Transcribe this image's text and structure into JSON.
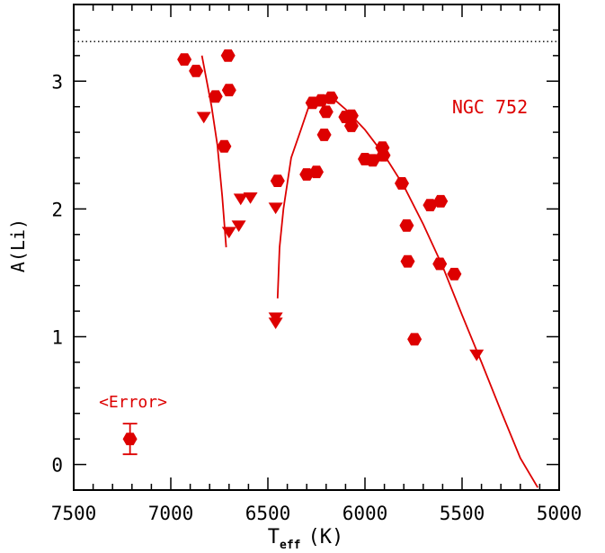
{
  "chart_data": {
    "type": "scatter",
    "title": "",
    "annotation": "NGC 752",
    "error_label": "<Error>",
    "xlabel": "T",
    "xlabel_sub": "eff",
    "xlabel_unit": "(K)",
    "ylabel": "A(Li)",
    "xlim": [
      7500,
      5000
    ],
    "ylim": [
      -0.2,
      3.6
    ],
    "xticks": [
      7500,
      7000,
      6500,
      6000,
      5500,
      5000
    ],
    "yticks": [
      0,
      1,
      2,
      3
    ],
    "reference_line": 3.31,
    "colors": {
      "data": "#dd0000",
      "axis": "#000000"
    },
    "detections": [
      [
        6930,
        3.17
      ],
      [
        6870,
        3.08
      ],
      [
        6705,
        3.2
      ],
      [
        6700,
        2.93
      ],
      [
        6770,
        2.88
      ],
      [
        6725,
        2.49
      ],
      [
        6450,
        2.22
      ],
      [
        6300,
        2.27
      ],
      [
        6250,
        2.29
      ],
      [
        6270,
        2.83
      ],
      [
        6225,
        2.85
      ],
      [
        6175,
        2.87
      ],
      [
        6200,
        2.76
      ],
      [
        6210,
        2.58
      ],
      [
        6100,
        2.72
      ],
      [
        6070,
        2.73
      ],
      [
        6070,
        2.65
      ],
      [
        5910,
        2.48
      ],
      [
        5905,
        2.42
      ],
      [
        6000,
        2.39
      ],
      [
        5960,
        2.38
      ],
      [
        5810,
        2.2
      ],
      [
        5785,
        1.87
      ],
      [
        5780,
        1.59
      ],
      [
        5745,
        0.98
      ],
      [
        5665,
        2.03
      ],
      [
        5610,
        2.06
      ],
      [
        5615,
        1.57
      ],
      [
        5540,
        1.49
      ]
    ],
    "upper_limits": [
      [
        6830,
        2.72
      ],
      [
        6700,
        1.82
      ],
      [
        6650,
        1.87
      ],
      [
        6640,
        2.08
      ],
      [
        6590,
        2.09
      ],
      [
        6460,
        2.01
      ],
      [
        6460,
        1.15
      ],
      [
        6460,
        1.11
      ],
      [
        5425,
        0.86
      ]
    ],
    "model_curves": [
      [
        [
          6840,
          3.2
        ],
        [
          6790,
          2.8
        ],
        [
          6760,
          2.5
        ],
        [
          6735,
          2.1
        ],
        [
          6715,
          1.7
        ]
      ],
      [
        [
          6450,
          1.3
        ],
        [
          6440,
          1.7
        ],
        [
          6420,
          2.0
        ],
        [
          6380,
          2.4
        ],
        [
          6330,
          2.62
        ],
        [
          6290,
          2.8
        ],
        [
          6250,
          2.86
        ],
        [
          6200,
          2.88
        ],
        [
          6160,
          2.86
        ],
        [
          6100,
          2.78
        ],
        [
          6000,
          2.62
        ],
        [
          5900,
          2.42
        ],
        [
          5800,
          2.18
        ],
        [
          5700,
          1.88
        ],
        [
          5600,
          1.55
        ],
        [
          5500,
          1.17
        ],
        [
          5400,
          0.8
        ],
        [
          5300,
          0.42
        ],
        [
          5200,
          0.05
        ],
        [
          5110,
          -0.18
        ]
      ]
    ],
    "error_bar": {
      "x": 7210,
      "y": 0.2,
      "err": 0.12
    }
  }
}
